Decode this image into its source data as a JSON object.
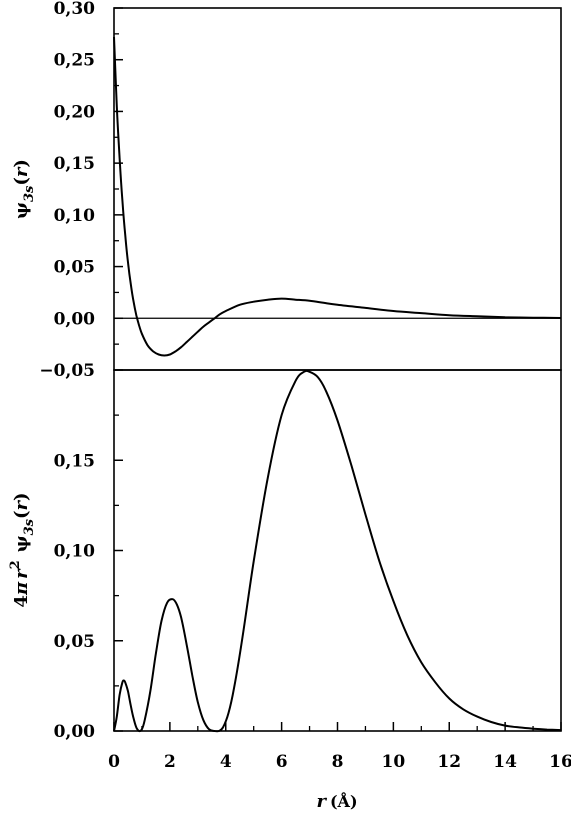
{
  "chart_data": [
    {
      "type": "line",
      "panel": "top",
      "ylabel_parts": {
        "psi": "ψ",
        "sub": "3s",
        "open": "(",
        "r": "r",
        "close": ")"
      },
      "xlim": [
        0,
        16
      ],
      "ylim": [
        -0.05,
        0.3
      ],
      "yticks": [
        "-0,05",
        "0,00",
        "0,05",
        "0,10",
        "0,15",
        "0,20",
        "0,25",
        "0,30"
      ],
      "yticks_values": [
        -0.05,
        0.0,
        0.05,
        0.1,
        0.15,
        0.2,
        0.25,
        0.3
      ],
      "zero_line": true,
      "series": [
        {
          "x": [
            0,
            0.1,
            0.2,
            0.3,
            0.4,
            0.5,
            0.6,
            0.7,
            0.8,
            0.9,
            1.0,
            1.2,
            1.4,
            1.6,
            1.8,
            2.0,
            2.2,
            2.4,
            2.6,
            2.8,
            3.0,
            3.2,
            3.4,
            3.6,
            3.8,
            4.0,
            4.5,
            5.0,
            5.5,
            6.0,
            6.5,
            7.0,
            7.5,
            8.0,
            9.0,
            10.0,
            11.0,
            12.0,
            13.0,
            14.0,
            15.0,
            16.0
          ],
          "y": [
            0.272,
            0.205,
            0.155,
            0.114,
            0.081,
            0.054,
            0.033,
            0.016,
            0.003,
            -0.007,
            -0.015,
            -0.026,
            -0.032,
            -0.035,
            -0.036,
            -0.035,
            -0.032,
            -0.028,
            -0.023,
            -0.018,
            -0.013,
            -0.008,
            -0.004,
            0.0,
            0.004,
            0.007,
            0.013,
            0.016,
            0.018,
            0.019,
            0.018,
            0.017,
            0.015,
            0.013,
            0.01,
            0.007,
            0.005,
            0.003,
            0.002,
            0.001,
            0.0006,
            0.0003
          ]
        }
      ]
    },
    {
      "type": "line",
      "panel": "bottom",
      "ylabel_parts": {
        "four": "4",
        "pi": "π",
        "r": "r",
        "sq": "2",
        "psi": "ψ",
        "sub": "3s",
        "open": "(",
        "r2": "r",
        "close": ")"
      },
      "xlabel_parts": {
        "r": "r",
        "unit": "(Å)"
      },
      "xlim": [
        0,
        16
      ],
      "ylim": [
        0,
        0.2
      ],
      "xticks": [
        "0",
        "2",
        "4",
        "6",
        "8",
        "10",
        "12",
        "14",
        "16"
      ],
      "xticks_values": [
        0,
        2,
        4,
        6,
        8,
        10,
        12,
        14,
        16
      ],
      "yticks": [
        "0,00",
        "0,05",
        "0,10",
        "0,15"
      ],
      "yticks_values": [
        0.0,
        0.05,
        0.1,
        0.15
      ],
      "top_panel_tick_label": "-0,05",
      "series": [
        {
          "x": [
            0,
            0.1,
            0.2,
            0.3,
            0.35,
            0.4,
            0.5,
            0.6,
            0.7,
            0.8,
            0.9,
            1.0,
            1.1,
            1.3,
            1.5,
            1.7,
            1.9,
            2.1,
            2.25,
            2.4,
            2.6,
            2.8,
            3.0,
            3.2,
            3.4,
            3.6,
            3.75,
            3.9,
            4.1,
            4.3,
            4.6,
            5.0,
            5.5,
            6.0,
            6.5,
            6.8,
            7.0,
            7.3,
            7.6,
            8.0,
            8.5,
            9.0,
            9.5,
            10.0,
            10.5,
            11.0,
            11.5,
            12.0,
            12.5,
            13.0,
            13.5,
            14.0,
            14.5,
            15.0,
            15.5,
            16.0
          ],
          "y": [
            0.0,
            0.008,
            0.02,
            0.027,
            0.028,
            0.027,
            0.022,
            0.014,
            0.007,
            0.002,
            0.0,
            0.001,
            0.006,
            0.022,
            0.043,
            0.061,
            0.071,
            0.073,
            0.07,
            0.063,
            0.048,
            0.031,
            0.016,
            0.006,
            0.001,
            0.0,
            0.0,
            0.002,
            0.01,
            0.024,
            0.052,
            0.094,
            0.14,
            0.175,
            0.194,
            0.199,
            0.199,
            0.196,
            0.188,
            0.172,
            0.147,
            0.12,
            0.094,
            0.072,
            0.053,
            0.038,
            0.027,
            0.018,
            0.012,
            0.008,
            0.005,
            0.003,
            0.002,
            0.0013,
            0.0008,
            0.0005
          ]
        }
      ]
    }
  ]
}
